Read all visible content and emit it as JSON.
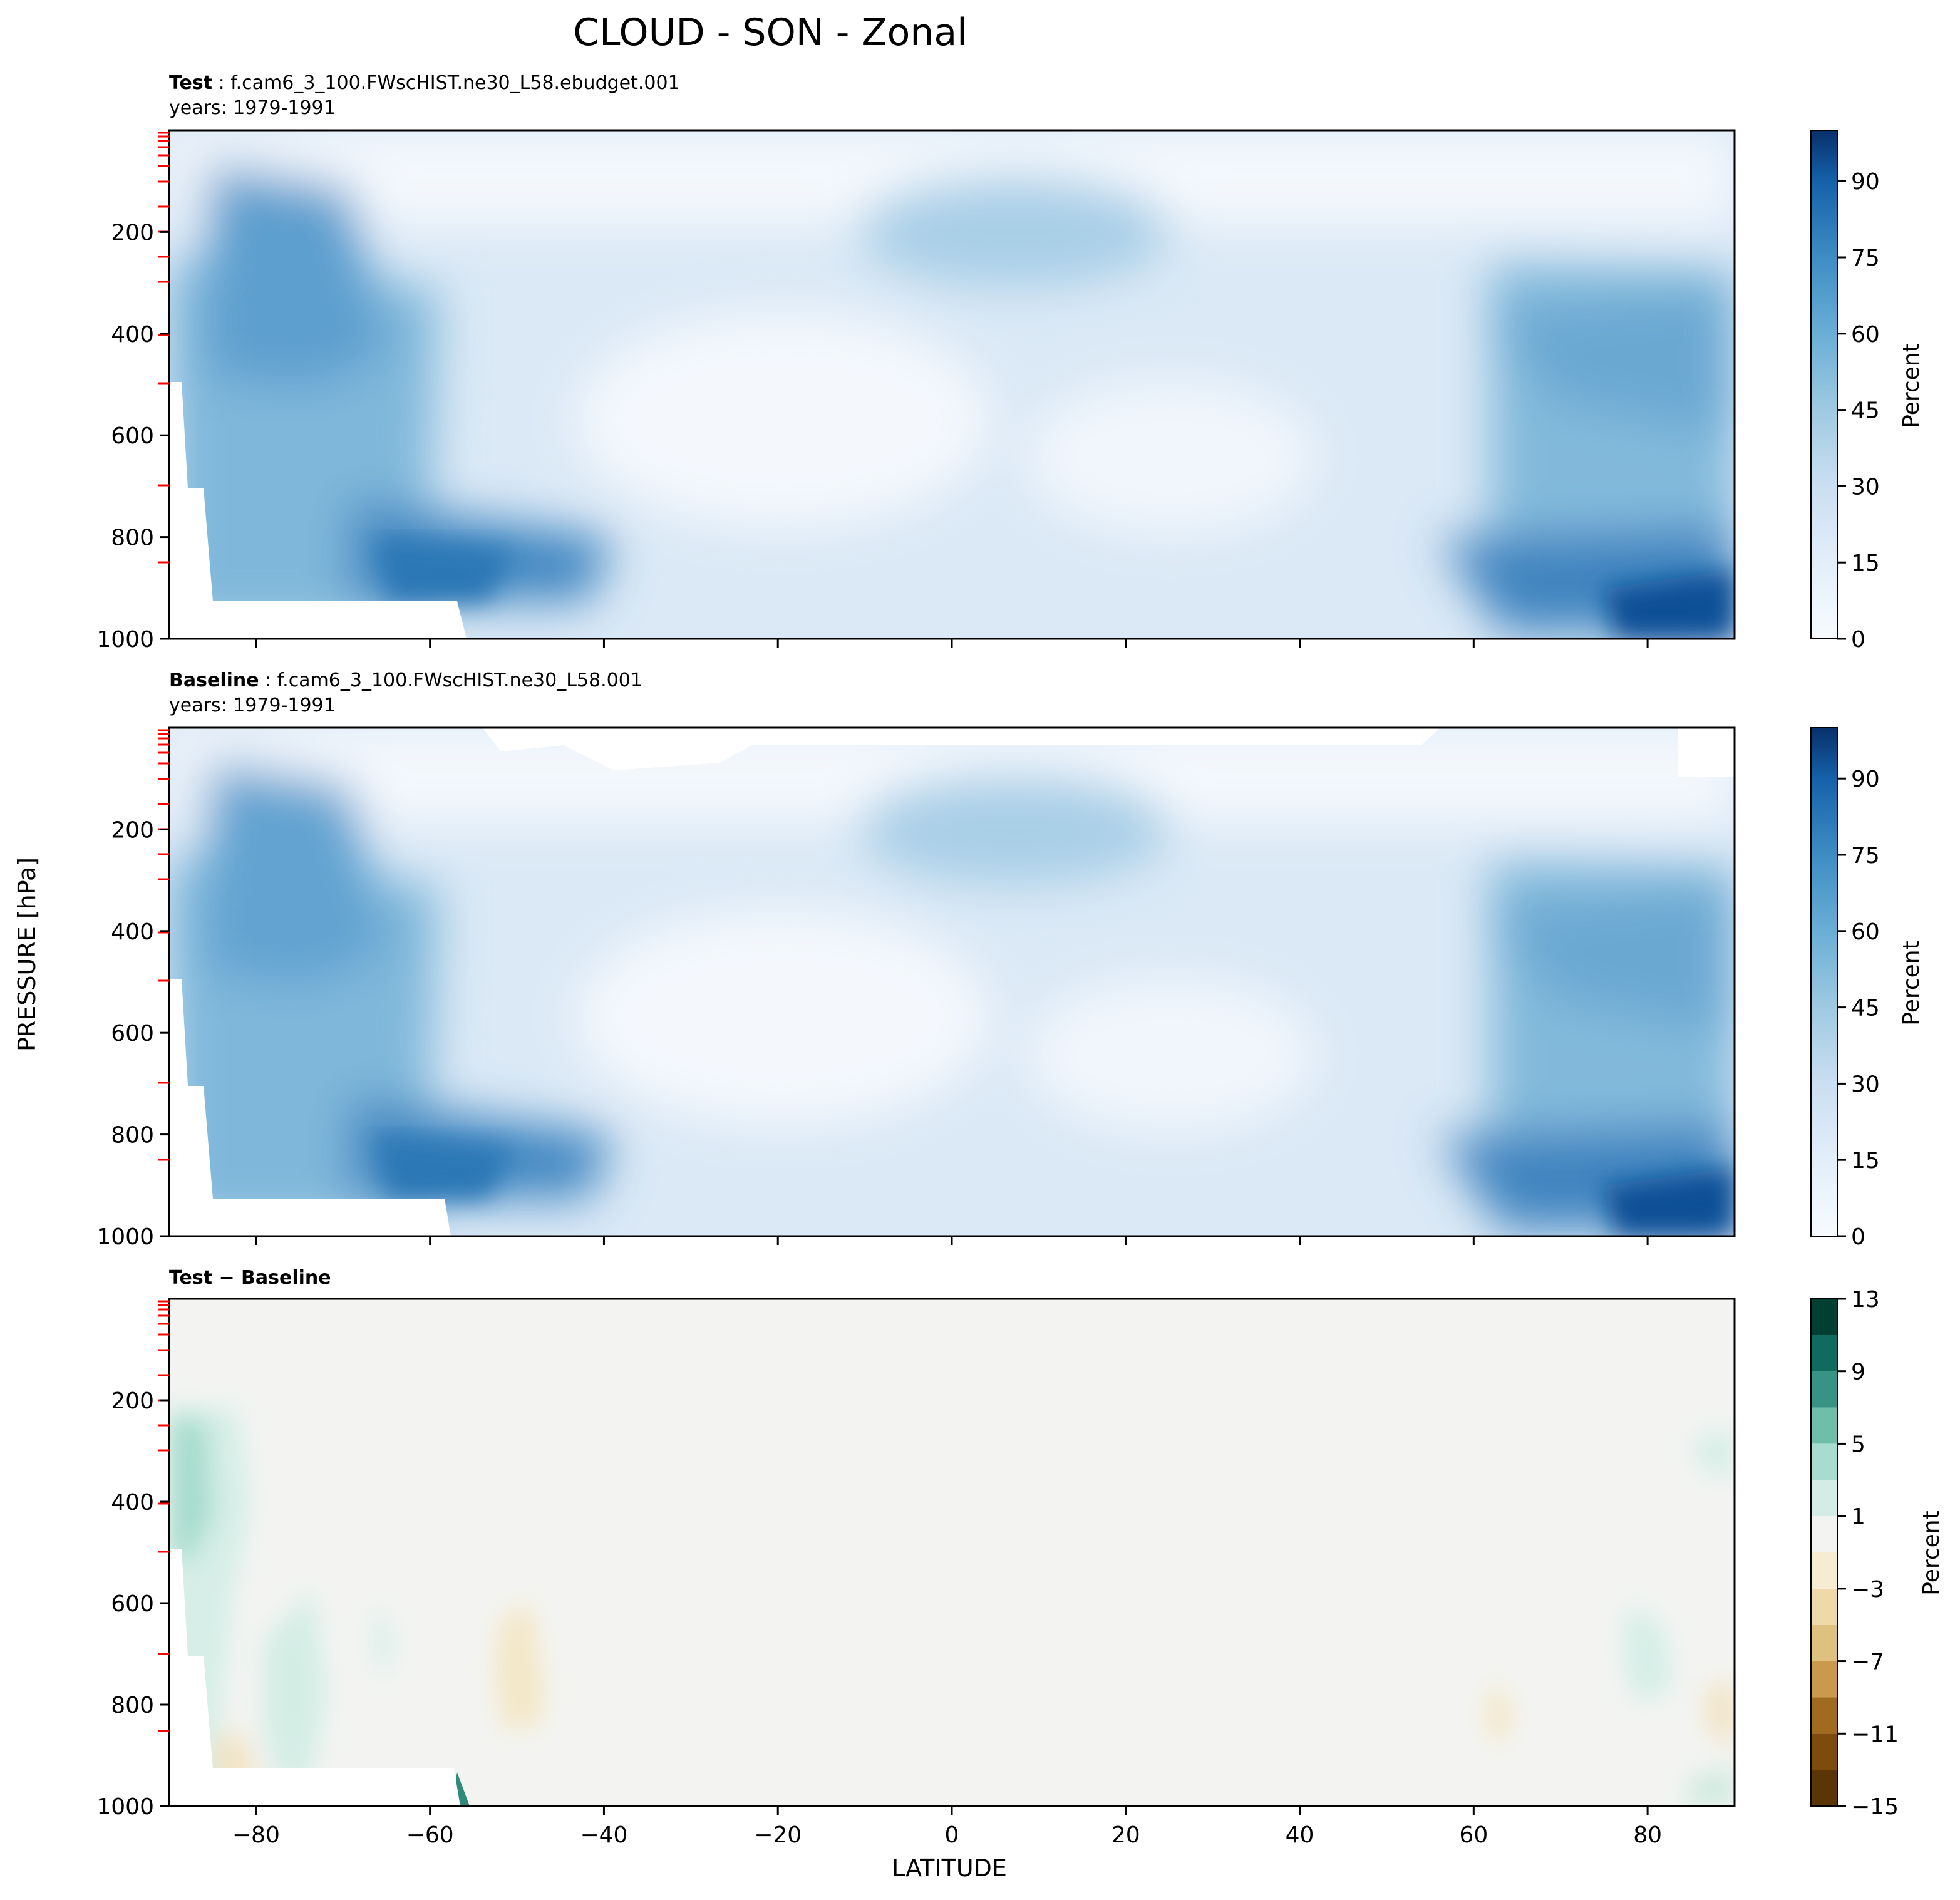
{
  "figure": {
    "title": "CLOUD - SON - Zonal",
    "y_axis_label": "PRESSURE [hPa]",
    "x_axis_label": "LATITUDE"
  },
  "chart_data": [
    {
      "type": "heatmap",
      "panel_label_bold": "Test",
      "panel_label_rest": " : f.cam6_3_100.FWscHIST.ne30_L58.ebudget.001",
      "years_label": "years: 1979-1991",
      "xlim": [
        -90,
        90
      ],
      "ylim": [
        1000,
        0
      ],
      "y_ticks": [
        200,
        400,
        600,
        800,
        1000
      ],
      "x_ticks": [
        -80,
        -60,
        -40,
        -20,
        0,
        20,
        40,
        60,
        80
      ],
      "colormap": "Blues",
      "colorbar_label": "Percent",
      "colorbar_ticks": [
        0,
        15,
        30,
        45,
        60,
        75,
        90
      ],
      "colorbar_range": [
        0,
        100
      ],
      "approx_features": {
        "max_percent": 90,
        "max_location": "surface, 80-90N",
        "upper_tropical_max": 35,
        "subtropical_min": 3
      }
    },
    {
      "type": "heatmap",
      "panel_label_bold": "Baseline",
      "panel_label_rest": " : f.cam6_3_100.FWscHIST.ne30_L58.001",
      "years_label": "years: 1979-1991",
      "xlim": [
        -90,
        90
      ],
      "ylim": [
        1000,
        0
      ],
      "y_ticks": [
        200,
        400,
        600,
        800,
        1000
      ],
      "x_ticks": [
        -80,
        -60,
        -40,
        -20,
        0,
        20,
        40,
        60,
        80
      ],
      "colormap": "Blues",
      "colorbar_label": "Percent",
      "colorbar_ticks": [
        0,
        15,
        30,
        45,
        60,
        75,
        90
      ],
      "colorbar_range": [
        0,
        100
      ]
    },
    {
      "type": "heatmap",
      "panel_label_bold": "Test − Baseline",
      "panel_label_rest": "",
      "years_label": "",
      "xlim": [
        -90,
        90
      ],
      "ylim": [
        1000,
        0
      ],
      "y_ticks": [
        200,
        400,
        600,
        800,
        1000
      ],
      "x_ticks": [
        -80,
        -60,
        -40,
        -20,
        0,
        20,
        40,
        60,
        80
      ],
      "x_tick_labels": [
        "−80",
        "−60",
        "−40",
        "−20",
        "0",
        "20",
        "40",
        "60",
        "80"
      ],
      "colormap": "BrBG",
      "colorbar_label": "Percent",
      "colorbar_ticks": [
        13,
        9,
        5,
        1,
        -3,
        -7,
        -11,
        -15
      ],
      "colorbar_tick_labels": [
        "13",
        "9",
        "5",
        "1",
        "−3",
        "−7",
        "−11",
        "−15"
      ],
      "colorbar_range": [
        -15,
        13
      ],
      "colorbar_levels": [
        -15,
        -13,
        -11,
        -9,
        -7,
        -5,
        -3,
        -1,
        1,
        3,
        5,
        7,
        9,
        11,
        13
      ],
      "level_colors": [
        "#5a3505",
        "#7d4b0c",
        "#a06a1f",
        "#c99a4b",
        "#dfc17f",
        "#eed9a8",
        "#f6ecd2",
        "#f3f4f2",
        "#d3ede6",
        "#a7dccf",
        "#6fbeaa",
        "#379485",
        "#0e6b5e",
        "#013f32"
      ]
    }
  ],
  "colors": {
    "blues_scale": [
      "#f7fbff",
      "#eef5fc",
      "#e3eef9",
      "#d9e7f5",
      "#cee0f2",
      "#bfd8ed",
      "#b0d2e8",
      "#9ecae1",
      "#87bddc",
      "#6aaed6",
      "#529dcc",
      "#3d8dc4",
      "#2b7bba",
      "#1c6aaf",
      "#0f5aa3",
      "#08488e",
      "#08306b"
    ],
    "neutral_background": "#f3f4f2",
    "tick_marker_red": "#ff0000"
  }
}
